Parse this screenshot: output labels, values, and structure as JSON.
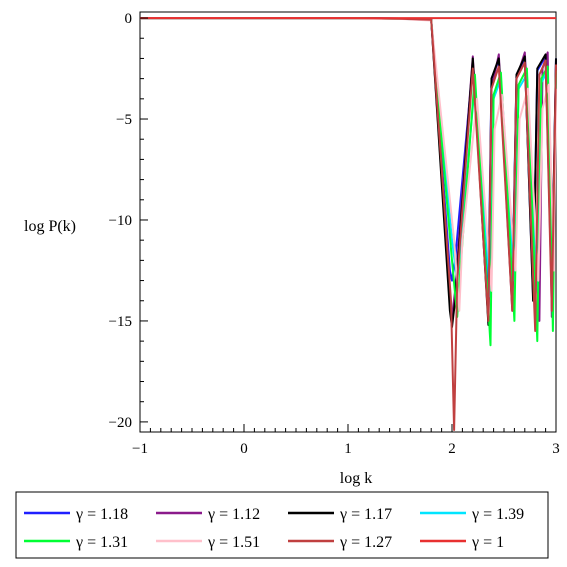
{
  "chart_data": {
    "type": "line",
    "title": "",
    "xlabel": "log k",
    "ylabel": "log P(k)",
    "xlim": [
      -1,
      3
    ],
    "ylim": [
      -20.5,
      0.3
    ],
    "xticks": [
      "-1",
      "0",
      "1",
      "2",
      "3"
    ],
    "yticks": [
      "0",
      "-5",
      "-10",
      "-15",
      "-20"
    ],
    "grid": false,
    "legend_position": "bottom",
    "series": [
      {
        "name": "γ = 1.18",
        "color": "#1f1fff",
        "x": [
          -1,
          1.0,
          1.5,
          1.8,
          1.98,
          2.0,
          2.03,
          2.2,
          2.35,
          2.38,
          2.45,
          2.58,
          2.62,
          2.7,
          2.78,
          2.82,
          2.9,
          2.96,
          3.0
        ],
        "y": [
          0,
          0,
          -0.02,
          -0.06,
          -12.5,
          -13.0,
          -12.0,
          -2.3,
          -13.5,
          -3.0,
          -2.1,
          -13.6,
          -2.8,
          -2.0,
          -13.8,
          -2.6,
          -1.9,
          -13.9,
          -2.0
        ]
      },
      {
        "name": "γ = 1.12",
        "color": "#8b1a8b",
        "x": [
          -1,
          1.0,
          1.5,
          1.8,
          1.98,
          2.0,
          2.03,
          2.2,
          2.35,
          2.38,
          2.45,
          2.58,
          2.62,
          2.7,
          2.84,
          2.87,
          2.92,
          2.96,
          3.0
        ],
        "y": [
          0,
          0,
          -0.02,
          -0.08,
          -14.0,
          -14.8,
          -13.5,
          -1.9,
          -15.0,
          -3.5,
          -1.8,
          -14.5,
          -3.0,
          -1.7,
          -15.0,
          -2.5,
          -1.7,
          -14.8,
          -2.2
        ]
      },
      {
        "name": "γ = 1.17",
        "color": "#000000",
        "x": [
          -1,
          1.0,
          1.5,
          1.8,
          1.98,
          2.0,
          2.03,
          2.2,
          2.35,
          2.38,
          2.45,
          2.58,
          2.62,
          2.7,
          2.78,
          2.82,
          2.9,
          2.96,
          3.0
        ],
        "y": [
          0,
          0,
          -0.02,
          -0.06,
          -14.5,
          -15.3,
          -14.0,
          -2.0,
          -15.2,
          -3.0,
          -2.0,
          -14.3,
          -2.8,
          -1.9,
          -14.0,
          -2.5,
          -1.8,
          -13.5,
          -2.0
        ]
      },
      {
        "name": "γ = 1.39",
        "color": "#00e5ff",
        "x": [
          -1,
          1.0,
          1.5,
          1.8,
          2.0,
          2.05,
          2.08,
          2.22,
          2.37,
          2.4,
          2.47,
          2.6,
          2.64,
          2.72,
          2.82,
          2.86,
          2.92,
          2.97,
          3.0
        ],
        "y": [
          0,
          0,
          -0.03,
          -0.1,
          -11.0,
          -13.0,
          -11.5,
          -3.2,
          -13.8,
          -4.0,
          -3.0,
          -13.0,
          -3.5,
          -2.8,
          -13.5,
          -3.2,
          -2.6,
          -12.8,
          -2.8
        ]
      },
      {
        "name": "γ = 1.31",
        "color": "#00ff33",
        "x": [
          -1,
          1.0,
          1.5,
          1.8,
          2.0,
          2.05,
          2.08,
          2.22,
          2.37,
          2.4,
          2.47,
          2.6,
          2.64,
          2.72,
          2.82,
          2.86,
          2.92,
          2.97,
          3.0
        ],
        "y": [
          0,
          0,
          -0.03,
          -0.09,
          -12.0,
          -14.8,
          -12.5,
          -2.8,
          -16.2,
          -3.8,
          -2.7,
          -15.0,
          -3.3,
          -2.5,
          -16.0,
          -3.0,
          -2.4,
          -15.5,
          -2.6
        ]
      },
      {
        "name": "γ = 1.51",
        "color": "#ffc0cb",
        "x": [
          -1,
          1.0,
          1.5,
          1.8,
          2.02,
          2.07,
          2.1,
          2.24,
          2.38,
          2.41,
          2.48,
          2.61,
          2.65,
          2.73,
          2.83,
          2.87,
          2.93,
          2.98,
          3.0
        ],
        "y": [
          0,
          0,
          -0.04,
          -0.12,
          -11.0,
          -14.5,
          -11.0,
          -4.0,
          -13.5,
          -5.5,
          -3.8,
          -12.5,
          -5.0,
          -3.5,
          -13.0,
          -4.5,
          -3.3,
          -12.5,
          -3.5
        ]
      },
      {
        "name": "γ = 1.27",
        "color": "#c04040",
        "x": [
          -1,
          1.0,
          1.5,
          1.8,
          1.99,
          2.02,
          2.05,
          2.2,
          2.35,
          2.38,
          2.45,
          2.58,
          2.62,
          2.7,
          2.8,
          2.84,
          2.9,
          2.96,
          3.0
        ],
        "y": [
          0,
          0,
          -0.03,
          -0.08,
          -14.0,
          -20.4,
          -13.0,
          -2.5,
          -15.0,
          -3.5,
          -2.4,
          -14.5,
          -3.0,
          -2.2,
          -15.5,
          -2.8,
          -2.1,
          -14.5,
          -2.3
        ]
      },
      {
        "name": "γ = 1",
        "color": "#e83030",
        "x": [
          -1,
          3.0
        ],
        "y": [
          0,
          0
        ]
      }
    ]
  }
}
